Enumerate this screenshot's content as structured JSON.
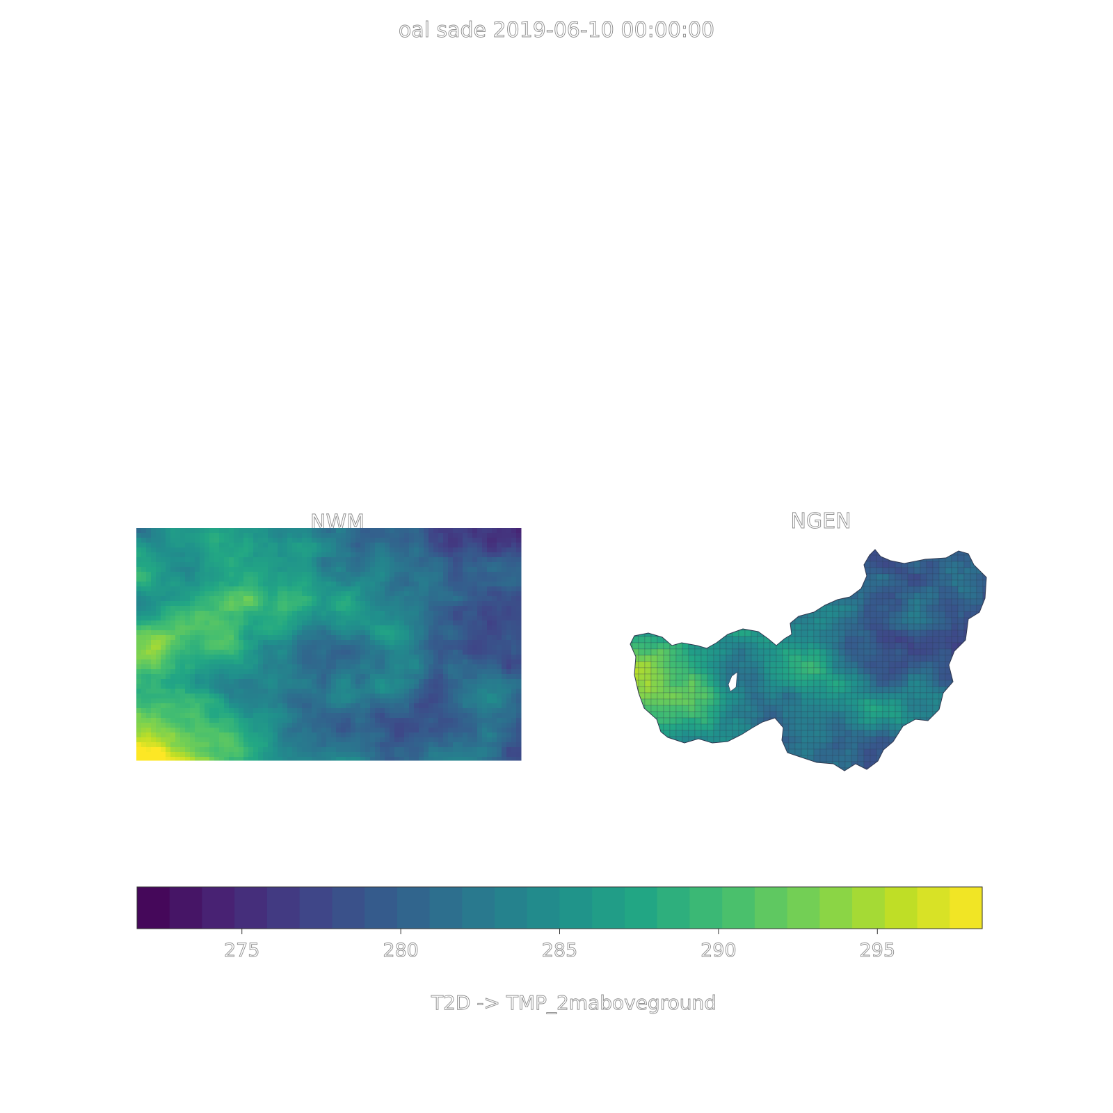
{
  "title": "oal sade 2019-06-10 00:00:00",
  "panels": [
    {
      "title": "NWM"
    },
    {
      "title": "NGEN"
    }
  ],
  "colormap": "viridis",
  "chart_data": {
    "type": "heatmap",
    "title": "oal sade 2019-06-10 00:00:00",
    "subplots": [
      "NWM",
      "NGEN"
    ],
    "colorbar": {
      "label": "T2D -> TMP_2maboveground",
      "range": [
        271.7,
        298.3
      ],
      "ticks": [
        275,
        280,
        285,
        290,
        295
      ],
      "tick_labels": [
        "275",
        "280",
        "285",
        "290",
        "295"
      ]
    }
  }
}
